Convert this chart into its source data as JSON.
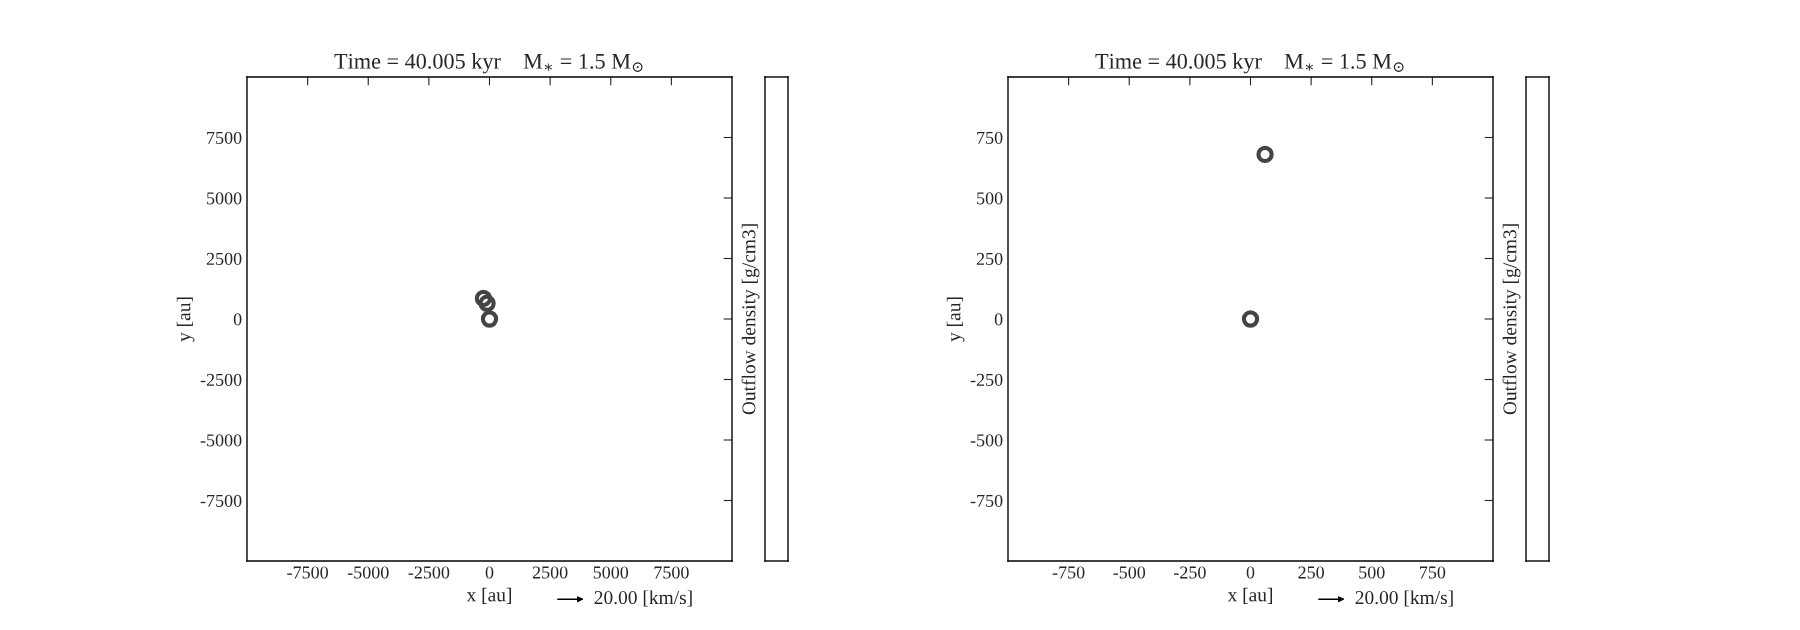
{
  "chart_data": [
    {
      "type": "scatter",
      "title": "Time = 40.005 kyr    M$_{∗}$ = 1.5 M$_{⊙}$",
      "xlabel": "x [au]",
      "ylabel": "y [au]",
      "clabel": "Outflow density [g/cm3]",
      "annotations": [
        "20.00 [km/s]"
      ],
      "series": [
        {
          "color": "#444444",
          "x": [
            -250,
            -100,
            0
          ],
          "values": [
            850,
            650,
            0
          ]
        }
      ],
      "marker": "circle",
      "xlim": [
        -10000,
        10000
      ],
      "ylim": [
        -10000,
        10000
      ],
      "xticks": [
        -7500,
        -5000,
        -2500,
        0,
        2500,
        5000,
        7500
      ],
      "yticks": [
        -7500,
        -5000,
        -2500,
        0,
        2500,
        5000,
        7500
      ],
      "grid": false
    },
    {
      "type": "scatter",
      "title": "Time = 40.005 kyr    M$_{∗}$ = 1.5 M$_{⊙}$",
      "xlabel": "x [au]",
      "ylabel": "y [au]",
      "clabel": "Outflow density [g/cm3]",
      "annotations": [
        "20.00 [km/s]"
      ],
      "series": [
        {
          "color": "#444444",
          "x": [
            0,
            60
          ],
          "values": [
            0,
            680
          ]
        }
      ],
      "marker": "circle",
      "xlim": [
        -1000,
        1000
      ],
      "ylim": [
        -1000,
        1000
      ],
      "xticks": [
        -750,
        -500,
        -250,
        0,
        250,
        500,
        750
      ],
      "yticks": [
        -750,
        -500,
        -250,
        0,
        250,
        500,
        750
      ],
      "grid": false
    }
  ]
}
